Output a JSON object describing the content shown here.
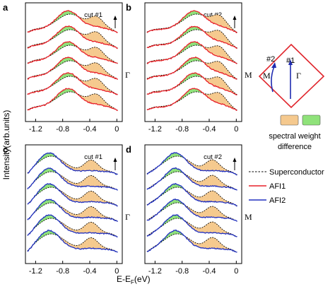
{
  "y_label": "Intensity(arb.units)",
  "x_label_main": "E-E",
  "x_label_sub": "F",
  "x_label_unit": "(eV)",
  "colors": {
    "superconductor": "#000000",
    "afi1": "#e8202a",
    "afi2": "#2030c0",
    "weight_orange": "#f5c98e",
    "weight_green": "#8fe27a",
    "diamond": "#e0262d",
    "cut_arrow": "#1f2bb0"
  },
  "inset": {
    "label_cut2": "#2",
    "label_cut1": "#1",
    "point_m": "M",
    "point_gamma": "Γ",
    "weight_caption_line1": "spectral weight",
    "weight_caption_line2": "difference"
  },
  "legend": {
    "superconductor": "Superconductor",
    "afi1": "AFI1",
    "afi2": "AFI2"
  },
  "chart_data": [
    {
      "panel": "a",
      "type": "line",
      "cut": "cut #1",
      "k_point": "Γ",
      "series": [
        {
          "name": "Superconductor",
          "style": "dashed"
        },
        {
          "name": "AFI1",
          "color": "#e8202a"
        }
      ],
      "curve_count": 6,
      "peak_ev": -0.72,
      "feature_ev": -0.3,
      "x_ticks": [
        "-1.2",
        "-0.8",
        "-0.4",
        "0"
      ],
      "xlim": [
        -1.35,
        0.08
      ]
    },
    {
      "panel": "b",
      "type": "line",
      "cut": "cut #2",
      "k_point": "M",
      "series": [
        {
          "name": "Superconductor",
          "style": "dashed"
        },
        {
          "name": "AFI1",
          "color": "#e8202a"
        }
      ],
      "curve_count": 6,
      "peak_ev": -0.62,
      "feature_ev": -0.25,
      "x_ticks": [
        "-1.2",
        "-0.8",
        "-0.4",
        "0"
      ],
      "xlim": [
        -1.35,
        0.08
      ]
    },
    {
      "panel": "c",
      "type": "line",
      "cut": "cut #1",
      "k_point": "Γ",
      "series": [
        {
          "name": "Superconductor",
          "style": "dashed"
        },
        {
          "name": "AFI2",
          "color": "#2030c0"
        }
      ],
      "curve_count": 6,
      "peak_ev": -1.0,
      "feature_ev": -0.38,
      "x_ticks": [
        "-1.2",
        "-0.8",
        "-0.4",
        "0"
      ],
      "xlim": [
        -1.35,
        0.08
      ]
    },
    {
      "panel": "d",
      "type": "line",
      "cut": "cut #2",
      "k_point": "M",
      "series": [
        {
          "name": "Superconductor",
          "style": "dashed"
        },
        {
          "name": "AFI2",
          "color": "#2030c0"
        }
      ],
      "curve_count": 6,
      "peak_ev": -0.9,
      "feature_ev": -0.35,
      "x_ticks": [
        "-1.2",
        "-0.8",
        "-0.4",
        "0"
      ],
      "xlim": [
        -1.35,
        0.08
      ]
    }
  ]
}
